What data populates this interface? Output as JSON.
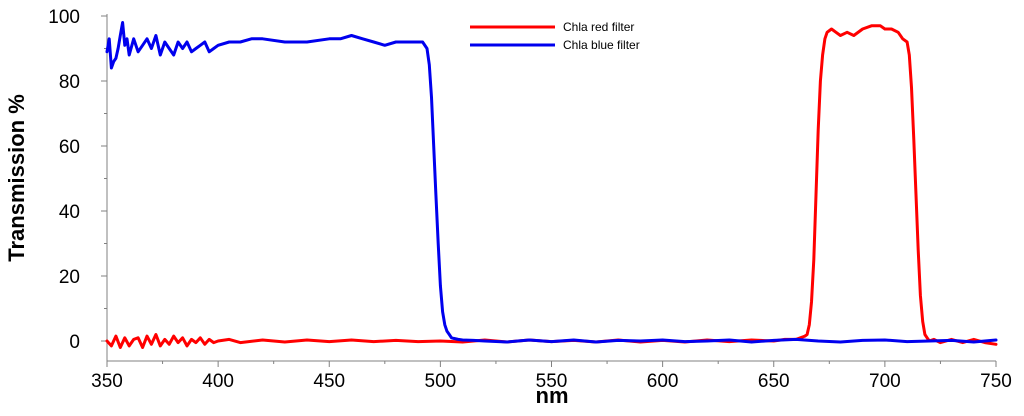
{
  "chart_data": {
    "type": "line",
    "title": "",
    "xlabel": "nm",
    "ylabel": "Transmission %",
    "xlim": [
      350,
      750
    ],
    "ylim": [
      0,
      100
    ],
    "x_ticks": [
      350,
      400,
      450,
      500,
      550,
      600,
      650,
      700,
      750
    ],
    "y_ticks": [
      0,
      20,
      40,
      60,
      80,
      100
    ],
    "grid": false,
    "legend_position": "top-right",
    "series": [
      {
        "name": "Chla red filter",
        "color": "#ff0000",
        "x": [
          350,
          352,
          354,
          356,
          358,
          360,
          362,
          364,
          366,
          368,
          370,
          372,
          374,
          376,
          378,
          380,
          382,
          384,
          386,
          388,
          390,
          392,
          394,
          396,
          398,
          400,
          405,
          410,
          420,
          430,
          440,
          450,
          460,
          470,
          480,
          490,
          500,
          510,
          520,
          530,
          540,
          550,
          560,
          570,
          580,
          590,
          600,
          610,
          620,
          630,
          640,
          650,
          655,
          660,
          662,
          664,
          665,
          666,
          667,
          668,
          669,
          670,
          671,
          672,
          673,
          674,
          676,
          678,
          680,
          683,
          686,
          690,
          694,
          698,
          700,
          703,
          706,
          708,
          710,
          711,
          712,
          713,
          714,
          715,
          716,
          717,
          718,
          719,
          720,
          722,
          725,
          730,
          735,
          740,
          745,
          750
        ],
        "y": [
          0,
          -1.5,
          1.5,
          -2,
          1,
          -1.5,
          0.5,
          1,
          -2,
          1.5,
          -1,
          2,
          -1.5,
          0.5,
          -1,
          1.5,
          -0.5,
          1,
          -1.5,
          0.5,
          -0.5,
          1,
          -1,
          0.5,
          -0.5,
          0,
          0.5,
          -0.5,
          0.3,
          -0.3,
          0.3,
          -0.2,
          0.3,
          -0.2,
          0.2,
          -0.2,
          0,
          -0.3,
          0.3,
          -0.3,
          0.3,
          -0.2,
          0.2,
          -0.3,
          0.3,
          -0.3,
          0.2,
          -0.3,
          0.3,
          -0.2,
          0.3,
          0,
          0.5,
          0.5,
          1,
          1.5,
          2,
          5,
          12,
          25,
          45,
          65,
          80,
          88,
          93,
          95,
          96,
          95,
          94,
          95,
          94,
          96,
          97,
          97,
          96,
          96,
          95,
          93,
          92,
          88,
          78,
          62,
          45,
          28,
          14,
          6,
          2,
          1,
          0,
          0.5,
          -0.5,
          0.5,
          -0.5,
          0.5,
          -0.5,
          -1
        ]
      },
      {
        "name": "Chla blue filter",
        "color": "#0000ee",
        "x": [
          350,
          351,
          352,
          353,
          354,
          355,
          356,
          357,
          358,
          359,
          360,
          362,
          364,
          366,
          368,
          370,
          372,
          374,
          376,
          378,
          380,
          382,
          384,
          386,
          388,
          390,
          392,
          394,
          396,
          398,
          400,
          405,
          410,
          415,
          420,
          430,
          440,
          450,
          455,
          460,
          465,
          470,
          475,
          480,
          485,
          490,
          492,
          494,
          495,
          496,
          497,
          498,
          499,
          500,
          501,
          502,
          503,
          504,
          505,
          506,
          508,
          510,
          515,
          520,
          530,
          540,
          550,
          560,
          570,
          580,
          590,
          600,
          610,
          620,
          630,
          640,
          650,
          660,
          670,
          680,
          690,
          700,
          710,
          720,
          730,
          740,
          750
        ],
        "y": [
          89,
          93,
          84,
          86,
          87,
          90,
          94,
          98,
          91,
          93,
          88,
          93,
          89,
          91,
          93,
          90,
          94,
          88,
          92,
          90,
          88,
          92,
          90,
          92,
          89,
          90,
          91,
          92,
          89,
          90,
          91,
          92,
          92,
          93,
          93,
          92,
          92,
          93,
          93,
          94,
          93,
          92,
          91,
          92,
          92,
          92,
          92,
          90,
          85,
          75,
          60,
          45,
          30,
          17,
          9,
          5,
          3,
          2,
          1,
          0.8,
          0.5,
          0.3,
          0.2,
          0,
          -0.3,
          0.3,
          -0.2,
          0.3,
          -0.3,
          0.2,
          0,
          0.3,
          -0.2,
          0,
          0.3,
          -0.3,
          0.2,
          0.5,
          0,
          -0.3,
          0.2,
          0.3,
          -0.2,
          0,
          0.2,
          -0.3,
          0.3
        ]
      }
    ]
  }
}
